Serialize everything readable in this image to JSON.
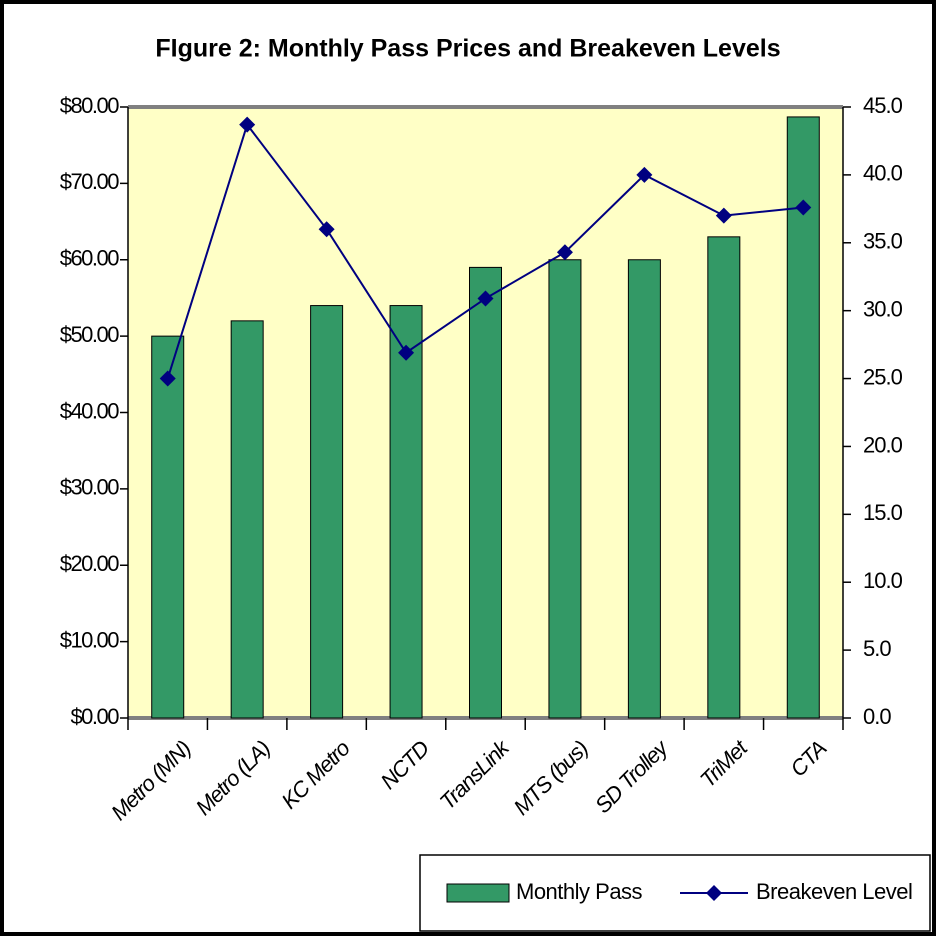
{
  "chart_data": {
    "type": "bar-line",
    "title": "FIgure 2: Monthly Pass Prices and Breakeven Levels",
    "categories": [
      "Metro (MN)",
      "Metro (LA)",
      "KC Metro",
      "NCTD",
      "TransLink",
      "MTS (bus)",
      "SD Trolley",
      "TriMet",
      "CTA"
    ],
    "series": [
      {
        "name": "Monthly Pass",
        "type": "bar",
        "color": "#339966",
        "values": [
          50,
          52,
          54,
          54,
          59,
          60,
          60,
          63,
          78.7
        ]
      },
      {
        "name": "Breakeven Level",
        "type": "line",
        "axis": "y2",
        "color": "#000080",
        "values": [
          25.0,
          43.7,
          36.0,
          26.9,
          30.9,
          34.3,
          40.0,
          37.0,
          37.6
        ]
      }
    ],
    "ylim": [
      0,
      80
    ],
    "yticks": [
      {
        "value": 0,
        "label": "$0.00"
      },
      {
        "value": 10,
        "label": "$10.00"
      },
      {
        "value": 20,
        "label": "$20.00"
      },
      {
        "value": 30,
        "label": "$30.00"
      },
      {
        "value": 40,
        "label": "$40.00"
      },
      {
        "value": 50,
        "label": "$50.00"
      },
      {
        "value": 60,
        "label": "$60.00"
      },
      {
        "value": 70,
        "label": "$70.00"
      },
      {
        "value": 80,
        "label": "$80.00"
      }
    ],
    "y2lim": [
      0,
      45
    ],
    "y2ticks": [
      {
        "value": 0,
        "label": "0.0"
      },
      {
        "value": 5,
        "label": "5.0"
      },
      {
        "value": 10,
        "label": "10.0"
      },
      {
        "value": 15,
        "label": "15.0"
      },
      {
        "value": 20,
        "label": "20.0"
      },
      {
        "value": 25,
        "label": "25.0"
      },
      {
        "value": 30,
        "label": "30.0"
      },
      {
        "value": 35,
        "label": "35.0"
      },
      {
        "value": 40,
        "label": "40.0"
      },
      {
        "value": 45,
        "label": "45.0"
      }
    ]
  }
}
